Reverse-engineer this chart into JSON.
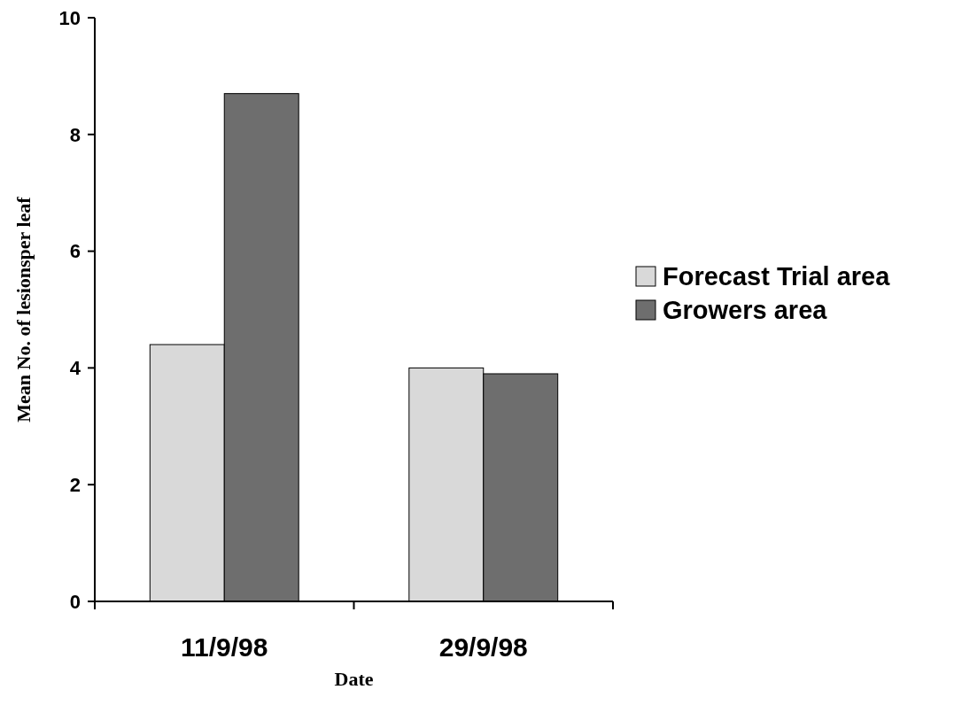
{
  "chart_data": {
    "type": "bar",
    "xlabel": "Date",
    "ylabel": "Mean No. of lesionsper leaf",
    "categories": [
      "11/9/98",
      "29/9/98"
    ],
    "series": [
      {
        "name": "Forecast Trial area",
        "color": "#d9d9d9",
        "values": [
          4.4,
          4.0
        ]
      },
      {
        "name": "Growers area",
        "color": "#6e6e6e",
        "values": [
          8.7,
          3.9
        ]
      }
    ],
    "ylim": [
      0,
      10
    ],
    "yticks": [
      0,
      2,
      4,
      6,
      8,
      10
    ],
    "grid": false,
    "legend": "right"
  }
}
